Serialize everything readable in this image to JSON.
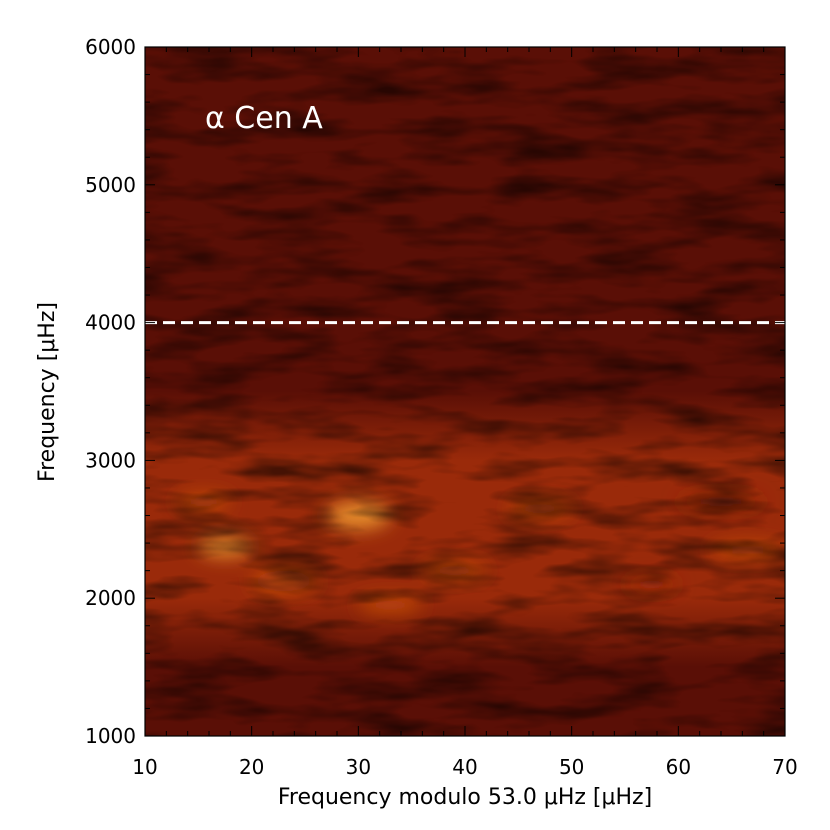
{
  "chart_data": {
    "type": "heatmap",
    "title": "",
    "annotation": "α Cen A",
    "xlabel": "Frequency modulo 53.0 μHz [μHz]",
    "ylabel": "Frequency [μHz]",
    "xlim": [
      10,
      70
    ],
    "ylim": [
      1000,
      6000
    ],
    "x_ticks": [
      10,
      20,
      30,
      40,
      50,
      60,
      70
    ],
    "y_ticks": [
      1000,
      2000,
      3000,
      4000,
      5000,
      6000
    ],
    "x_tick_labels": [
      "10",
      "20",
      "30",
      "40",
      "50",
      "60",
      "70"
    ],
    "y_tick_labels": [
      "1000",
      "2000",
      "3000",
      "4000",
      "5000",
      "6000"
    ],
    "reference_line": {
      "y": 4000,
      "style": "dashed",
      "color": "#ffffff"
    },
    "colormap": [
      "#1e0502",
      "#5a0f06",
      "#9a2a0a",
      "#d2560e",
      "#f4a032"
    ],
    "regions": [
      {
        "x": 15,
        "y": 2300,
        "x2": 20,
        "y2": 2450,
        "level": 0.9
      },
      {
        "x": 27,
        "y": 2500,
        "x2": 33,
        "y2": 2700,
        "level": 1.0
      },
      {
        "x": 13,
        "y": 2650,
        "x2": 18,
        "y2": 2750,
        "level": 0.8
      },
      {
        "x": 20,
        "y": 2050,
        "x2": 26,
        "y2": 2200,
        "level": 0.85
      },
      {
        "x": 30,
        "y": 1900,
        "x2": 36,
        "y2": 2000,
        "level": 0.8
      },
      {
        "x": 36,
        "y": 2150,
        "x2": 42,
        "y2": 2250,
        "level": 0.7
      },
      {
        "x": 44,
        "y": 2600,
        "x2": 50,
        "y2": 2700,
        "level": 0.65
      },
      {
        "x": 63,
        "y": 2300,
        "x2": 70,
        "y2": 2400,
        "level": 0.7
      },
      {
        "x": 60,
        "y": 2650,
        "x2": 68,
        "y2": 2750,
        "level": 0.6
      },
      {
        "x": 55,
        "y": 2050,
        "x2": 60,
        "y2": 2150,
        "level": 0.6
      }
    ]
  }
}
